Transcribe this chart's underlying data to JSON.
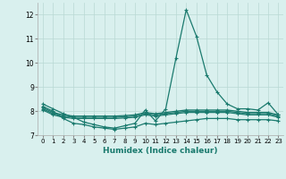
{
  "xlabel": "Humidex (Indice chaleur)",
  "x_values": [
    0,
    1,
    2,
    3,
    4,
    5,
    6,
    7,
    8,
    9,
    10,
    11,
    12,
    13,
    14,
    15,
    16,
    17,
    18,
    19,
    20,
    21,
    22,
    23
  ],
  "line_spike": [
    8.3,
    8.1,
    7.9,
    7.75,
    7.55,
    7.45,
    7.35,
    7.3,
    7.4,
    7.5,
    8.05,
    7.6,
    8.1,
    10.2,
    12.2,
    11.1,
    9.5,
    8.8,
    8.3,
    8.1,
    8.1,
    8.05,
    8.35,
    7.85
  ],
  "line_flat1": [
    8.15,
    7.95,
    7.85,
    7.8,
    7.8,
    7.8,
    7.8,
    7.8,
    7.82,
    7.85,
    7.95,
    7.9,
    7.95,
    8.0,
    8.05,
    8.05,
    8.05,
    8.05,
    8.05,
    8.0,
    7.95,
    7.95,
    7.95,
    7.85
  ],
  "line_flat2": [
    8.1,
    7.9,
    7.8,
    7.75,
    7.75,
    7.75,
    7.75,
    7.75,
    7.77,
    7.8,
    7.9,
    7.85,
    7.9,
    7.95,
    8.0,
    8.0,
    8.0,
    8.0,
    8.0,
    7.95,
    7.9,
    7.9,
    7.9,
    7.8
  ],
  "line_flat3": [
    8.05,
    7.85,
    7.75,
    7.7,
    7.7,
    7.7,
    7.7,
    7.7,
    7.72,
    7.75,
    7.85,
    7.8,
    7.85,
    7.9,
    7.95,
    7.95,
    7.95,
    7.95,
    7.95,
    7.9,
    7.85,
    7.85,
    7.85,
    7.75
  ],
  "line_dip": [
    8.2,
    8.0,
    7.7,
    7.5,
    7.45,
    7.35,
    7.3,
    7.25,
    7.3,
    7.35,
    7.5,
    7.45,
    7.5,
    7.55,
    7.6,
    7.65,
    7.7,
    7.7,
    7.7,
    7.65,
    7.65,
    7.65,
    7.65,
    7.6
  ],
  "line_color": "#1a7a6e",
  "bg_color": "#d9f0ee",
  "grid_color": "#b8d8d4",
  "ylim": [
    7.0,
    12.5
  ],
  "xlim": [
    -0.5,
    23.5
  ],
  "yticks": [
    7,
    8,
    9,
    10,
    11,
    12
  ],
  "xticks": [
    0,
    1,
    2,
    3,
    4,
    5,
    6,
    7,
    8,
    9,
    10,
    11,
    12,
    13,
    14,
    15,
    16,
    17,
    18,
    19,
    20,
    21,
    22,
    23
  ]
}
